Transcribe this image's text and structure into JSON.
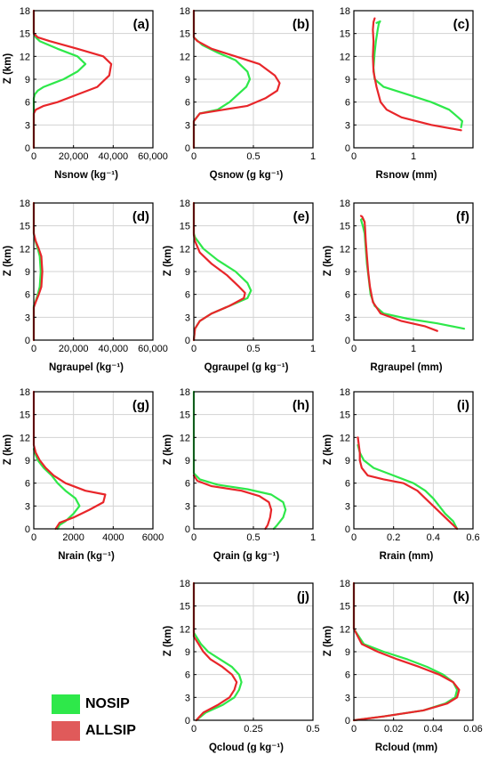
{
  "colors": {
    "nosip": "#2ee84a",
    "allsip": "#e8262a",
    "grid": "#d3d3d3",
    "axis": "#000000"
  },
  "legend": {
    "items": [
      {
        "label": "NOSIP",
        "color": "#2ee84a"
      },
      {
        "label": "ALLSIP",
        "color": "#e05a5a"
      }
    ]
  },
  "chart_data": [
    {
      "id": "a",
      "panel_label": "(a)",
      "type": "line",
      "xlabel": "Nsnow (kg⁻¹)",
      "ylabel": "Z (km)",
      "xlim": [
        0,
        60000
      ],
      "xticks": [
        0,
        20000,
        40000,
        60000
      ],
      "xtick_labels": [
        "0",
        "20,000",
        "40,000",
        "60,000"
      ],
      "ylim": [
        0,
        18
      ],
      "yticks": [
        0,
        3,
        6,
        9,
        12,
        15,
        18
      ],
      "ytick_labels": [
        "0",
        "3",
        "6",
        "9",
        "12",
        "15",
        "18"
      ],
      "series": [
        {
          "name": "NOSIP",
          "x": [
            0,
            0,
            500,
            2000,
            5000,
            10000,
            15000,
            22000,
            26000,
            22000,
            12000,
            3000,
            1000,
            0,
            0
          ],
          "y": [
            0,
            6.5,
            7,
            7.5,
            8,
            8.5,
            9,
            10,
            11,
            12,
            13,
            14,
            14.5,
            15,
            18
          ]
        },
        {
          "name": "ALLSIP",
          "x": [
            0,
            0,
            1000,
            5000,
            12000,
            22000,
            32000,
            38000,
            39000,
            35000,
            22000,
            8000,
            2000,
            0,
            0
          ],
          "y": [
            0,
            4.5,
            5,
            5.5,
            6,
            7,
            8,
            9.5,
            11,
            12,
            13,
            14,
            14.5,
            15,
            18
          ]
        }
      ]
    },
    {
      "id": "b",
      "panel_label": "(b)",
      "type": "line",
      "xlabel": "Qsnow (g kg⁻¹)",
      "ylabel": "",
      "xlim": [
        0,
        1
      ],
      "xticks": [
        0,
        0.5,
        1
      ],
      "xtick_labels": [
        "0",
        "0.5",
        "1"
      ],
      "ylim": [
        0,
        18
      ],
      "yticks": [
        0,
        3,
        6,
        9,
        12,
        15,
        18
      ],
      "ytick_labels": [
        "0",
        "3",
        "6",
        "9",
        "12",
        "15",
        "18"
      ],
      "series": [
        {
          "name": "NOSIP",
          "x": [
            0,
            0,
            0.05,
            0.2,
            0.3,
            0.37,
            0.44,
            0.47,
            0.45,
            0.35,
            0.2,
            0.07,
            0,
            0
          ],
          "y": [
            0,
            3.5,
            4.5,
            5,
            6,
            7,
            8,
            9,
            10,
            11.5,
            12.5,
            13.5,
            14.5,
            18
          ]
        },
        {
          "name": "ALLSIP",
          "x": [
            0,
            0,
            0.05,
            0.25,
            0.45,
            0.6,
            0.7,
            0.72,
            0.68,
            0.55,
            0.35,
            0.15,
            0.03,
            0,
            0
          ],
          "y": [
            0,
            3.5,
            4.5,
            5,
            5.5,
            6.5,
            7.5,
            8.5,
            9.5,
            11,
            12,
            13,
            14,
            14.5,
            18
          ]
        }
      ]
    },
    {
      "id": "c",
      "panel_label": "(c)",
      "type": "line",
      "xlabel": "Rsnow (mm)",
      "ylabel": "",
      "xlim": [
        0,
        2
      ],
      "xticks": [
        0,
        1,
        2
      ],
      "xtick_labels": [
        "0",
        "1",
        ""
      ],
      "ylim": [
        0,
        18
      ],
      "yticks": [
        0,
        3,
        6,
        9,
        12,
        15,
        18
      ],
      "ytick_labels": [
        "0",
        "3",
        "6",
        "9",
        "12",
        "15",
        "18"
      ],
      "series": [
        {
          "name": "NOSIP",
          "x": [
            1.8,
            1.82,
            1.75,
            1.6,
            1.3,
            0.9,
            0.5,
            0.35,
            0.33,
            0.35,
            0.37,
            0.4,
            0.42,
            0.44,
            0.38
          ],
          "y": [
            2.7,
            3.5,
            4,
            5,
            6,
            7,
            8,
            9,
            10.5,
            12.5,
            14,
            15.5,
            16.3,
            16.6,
            16.4
          ]
        },
        {
          "name": "ALLSIP",
          "x": [
            1.8,
            1.3,
            0.8,
            0.55,
            0.45,
            0.38,
            0.33,
            0.32,
            0.33,
            0.32,
            0.33,
            0.35
          ],
          "y": [
            2.3,
            3,
            4,
            5,
            6,
            8,
            10,
            12,
            14,
            15.5,
            16.5,
            17
          ]
        }
      ]
    },
    {
      "id": "d",
      "panel_label": "(d)",
      "type": "line",
      "xlabel": "Ngraupel (kg⁻¹)",
      "ylabel": "Z (km)",
      "xlim": [
        0,
        60000
      ],
      "xticks": [
        0,
        20000,
        40000,
        60000
      ],
      "xtick_labels": [
        "0",
        "20,000",
        "40,000",
        "60,000"
      ],
      "ylim": [
        0,
        18
      ],
      "yticks": [
        0,
        3,
        6,
        9,
        12,
        15,
        18
      ],
      "ytick_labels": [
        "0",
        "3",
        "6",
        "9",
        "12",
        "15",
        "18"
      ],
      "series": [
        {
          "name": "NOSIP",
          "x": [
            0,
            0,
            800,
            2000,
            3000,
            3500,
            3000,
            2000,
            800,
            0,
            0
          ],
          "y": [
            0,
            4.5,
            5,
            6,
            7,
            9,
            11,
            12,
            13,
            14,
            18
          ]
        },
        {
          "name": "ALLSIP",
          "x": [
            0,
            0,
            1000,
            2500,
            3800,
            4300,
            3800,
            2500,
            1000,
            0,
            0
          ],
          "y": [
            0,
            4.3,
            5,
            6,
            7,
            9,
            11,
            12,
            13,
            14,
            18
          ]
        }
      ]
    },
    {
      "id": "e",
      "panel_label": "(e)",
      "type": "line",
      "xlabel": "Qgraupel (g kg⁻¹)",
      "ylabel": "Z (km)",
      "xlim": [
        0,
        1
      ],
      "xticks": [
        0,
        0.5,
        1
      ],
      "xtick_labels": [
        "0",
        "0.5",
        "1"
      ],
      "ylim": [
        0,
        18
      ],
      "yticks": [
        0,
        3,
        6,
        9,
        12,
        15,
        18
      ],
      "ytick_labels": [
        "0",
        "3",
        "6",
        "9",
        "12",
        "15",
        "18"
      ],
      "series": [
        {
          "name": "NOSIP",
          "x": [
            0,
            0.01,
            0.05,
            0.15,
            0.3,
            0.45,
            0.48,
            0.45,
            0.35,
            0.2,
            0.08,
            0.01,
            0,
            0
          ],
          "y": [
            0,
            1.5,
            2.5,
            3.5,
            4.5,
            5.5,
            6.5,
            7.5,
            9,
            10.5,
            12,
            13.5,
            14,
            18
          ]
        },
        {
          "name": "ALLSIP",
          "x": [
            0,
            0.01,
            0.05,
            0.15,
            0.3,
            0.42,
            0.43,
            0.38,
            0.28,
            0.15,
            0.05,
            0.01,
            0,
            0
          ],
          "y": [
            0,
            1.5,
            2.5,
            3.5,
            4.5,
            5.5,
            6.2,
            7,
            8.5,
            10,
            11.5,
            13,
            13.8,
            18
          ]
        }
      ]
    },
    {
      "id": "f",
      "panel_label": "(f)",
      "type": "line",
      "xlabel": "Rgraupel (mm)",
      "ylabel": "Z (km)",
      "xlim": [
        0,
        2
      ],
      "xticks": [
        0,
        1,
        2
      ],
      "xtick_labels": [
        "0",
        "1",
        ""
      ],
      "ylim": [
        0,
        18
      ],
      "yticks": [
        0,
        3,
        6,
        9,
        12,
        15,
        18
      ],
      "ytick_labels": [
        "0",
        "3",
        "6",
        "9",
        "12",
        "15",
        "18"
      ],
      "series": [
        {
          "name": "NOSIP",
          "x": [
            1.85,
            1.4,
            0.9,
            0.5,
            0.35,
            0.28,
            0.25,
            0.22,
            0.2,
            0.18,
            0.15,
            0.12,
            0.15,
            0.18
          ],
          "y": [
            1.5,
            2.2,
            2.8,
            3.5,
            4.5,
            6,
            8,
            10,
            12,
            14,
            15,
            15.8,
            16,
            15.5
          ]
        },
        {
          "name": "ALLSIP",
          "x": [
            1.4,
            1.2,
            0.8,
            0.45,
            0.32,
            0.27,
            0.24,
            0.22,
            0.2,
            0.19,
            0.18,
            0.14,
            0.12
          ],
          "y": [
            1.2,
            1.8,
            2.5,
            3.5,
            5,
            7,
            9,
            11,
            13,
            14.5,
            15.5,
            16.2,
            16.3
          ]
        }
      ]
    },
    {
      "id": "g",
      "panel_label": "(g)",
      "type": "line",
      "xlabel": "Nrain (kg⁻¹)",
      "ylabel": "Z (km)",
      "xlim": [
        0,
        6000
      ],
      "xticks": [
        0,
        2000,
        4000,
        6000
      ],
      "xtick_labels": [
        "0",
        "2000",
        "4000",
        "6000"
      ],
      "ylim": [
        0,
        18
      ],
      "yticks": [
        0,
        3,
        6,
        9,
        12,
        15,
        18
      ],
      "ytick_labels": [
        "0",
        "3",
        "6",
        "9",
        "12",
        "15",
        "18"
      ],
      "series": [
        {
          "name": "NOSIP",
          "x": [
            1200,
            1300,
            1600,
            2000,
            2300,
            2100,
            1600,
            1200,
            900,
            500,
            200,
            50,
            0
          ],
          "y": [
            0,
            0.5,
            1,
            2,
            3,
            4,
            5,
            6,
            7,
            8,
            9,
            10,
            10.5
          ]
        },
        {
          "name": "ALLSIP",
          "x": [
            1100,
            1300,
            2000,
            2800,
            3500,
            3600,
            2600,
            1600,
            1000,
            600,
            300,
            100,
            0,
            0
          ],
          "y": [
            0,
            0.8,
            1.5,
            2.5,
            3.5,
            4.5,
            5,
            6,
            7,
            8,
            9,
            10,
            11,
            18
          ]
        }
      ]
    },
    {
      "id": "h",
      "panel_label": "(h)",
      "type": "line",
      "xlabel": "Qrain (g kg⁻¹)",
      "ylabel": "Z (km)",
      "xlim": [
        0,
        1
      ],
      "xticks": [
        0,
        0.5,
        1
      ],
      "xtick_labels": [
        "0",
        "0.5",
        "1"
      ],
      "ylim": [
        0,
        18
      ],
      "yticks": [
        0,
        3,
        6,
        9,
        12,
        15,
        18
      ],
      "ytick_labels": [
        "0",
        "3",
        "6",
        "9",
        "12",
        "15",
        "18"
      ],
      "series": [
        {
          "name": "NOSIP",
          "x": [
            0.67,
            0.7,
            0.75,
            0.77,
            0.75,
            0.65,
            0.45,
            0.2,
            0.05,
            0,
            0
          ],
          "y": [
            0,
            0.5,
            1.5,
            2.5,
            3.5,
            4.5,
            5.2,
            5.8,
            6.5,
            7.3,
            18
          ]
        },
        {
          "name": "ALLSIP",
          "x": [
            0.6,
            0.62,
            0.64,
            0.65,
            0.63,
            0.55,
            0.4,
            0.15,
            0.03,
            0
          ],
          "y": [
            0,
            0.5,
            1.5,
            2.5,
            3.5,
            4.3,
            5,
            5.6,
            6.3,
            7
          ]
        }
      ]
    },
    {
      "id": "i",
      "panel_label": "(i)",
      "type": "line",
      "xlabel": "Rrain (mm)",
      "ylabel": "Z (km)",
      "xlim": [
        0,
        0.6
      ],
      "xticks": [
        0,
        0.2,
        0.4,
        0.6
      ],
      "xtick_labels": [
        "0",
        "0.2",
        "0.4",
        "0.6"
      ],
      "ylim": [
        0,
        18
      ],
      "yticks": [
        0,
        3,
        6,
        9,
        12,
        15,
        18
      ],
      "ytick_labels": [
        "0",
        "3",
        "6",
        "9",
        "12",
        "15",
        "18"
      ],
      "series": [
        {
          "name": "NOSIP",
          "x": [
            0.52,
            0.5,
            0.46,
            0.43,
            0.4,
            0.36,
            0.3,
            0.2,
            0.1,
            0.05,
            0.03,
            0.02
          ],
          "y": [
            0,
            1,
            2,
            3,
            4,
            5,
            6,
            7,
            8,
            9,
            10,
            11
          ]
        },
        {
          "name": "ALLSIP",
          "x": [
            0.52,
            0.48,
            0.44,
            0.4,
            0.36,
            0.32,
            0.25,
            0.15,
            0.07,
            0.04,
            0.03,
            0.03,
            0.02
          ],
          "y": [
            0,
            1,
            2,
            3,
            4,
            5,
            6,
            6.5,
            7,
            8,
            9,
            10,
            12
          ]
        }
      ]
    },
    {
      "id": "j",
      "panel_label": "(j)",
      "type": "line",
      "xlabel": "Qcloud (g kg⁻¹)",
      "ylabel": "Z (km)",
      "xlim": [
        0,
        0.5
      ],
      "xticks": [
        0,
        0.25,
        0.5
      ],
      "xtick_labels": [
        "0",
        "0.25",
        "0.5"
      ],
      "ylim": [
        0,
        18
      ],
      "yticks": [
        0,
        3,
        6,
        9,
        12,
        15,
        18
      ],
      "ytick_labels": [
        "0",
        "3",
        "6",
        "9",
        "12",
        "15",
        "18"
      ],
      "series": [
        {
          "name": "NOSIP",
          "x": [
            0.01,
            0.05,
            0.12,
            0.17,
            0.19,
            0.2,
            0.19,
            0.16,
            0.11,
            0.06,
            0.03,
            0,
            0
          ],
          "y": [
            0,
            1,
            2,
            3,
            4,
            5,
            6,
            7,
            8,
            9,
            10,
            11.5,
            18
          ]
        },
        {
          "name": "ALLSIP",
          "x": [
            0.01,
            0.04,
            0.1,
            0.15,
            0.17,
            0.18,
            0.16,
            0.12,
            0.07,
            0.04,
            0.02,
            0,
            0
          ],
          "y": [
            0,
            1,
            2,
            3,
            4,
            5,
            6,
            7,
            8,
            9,
            10,
            11,
            18
          ]
        }
      ]
    },
    {
      "id": "k",
      "panel_label": "(k)",
      "type": "line",
      "xlabel": "Rcloud (mm)",
      "ylabel": "Z (km)",
      "xlim": [
        0,
        0.06
      ],
      "xticks": [
        0,
        0.02,
        0.04,
        0.06
      ],
      "xtick_labels": [
        "0",
        "0.02",
        "0.04",
        "0.06"
      ],
      "ylim": [
        0,
        18
      ],
      "yticks": [
        0,
        3,
        6,
        9,
        12,
        15,
        18
      ],
      "ytick_labels": [
        "0",
        "3",
        "6",
        "9",
        "12",
        "15",
        "18"
      ],
      "series": [
        {
          "name": "NOSIP",
          "x": [
            0,
            0.015,
            0.035,
            0.046,
            0.051,
            0.052,
            0.05,
            0.045,
            0.037,
            0.027,
            0.015,
            0.005,
            0,
            0
          ],
          "y": [
            0,
            0.5,
            1.3,
            2.2,
            3,
            4,
            5,
            6,
            7,
            8,
            9,
            10,
            12,
            18
          ]
        },
        {
          "name": "ALLSIP",
          "x": [
            0,
            0.015,
            0.035,
            0.047,
            0.052,
            0.053,
            0.05,
            0.043,
            0.033,
            0.022,
            0.012,
            0.004,
            0,
            0
          ],
          "y": [
            0,
            0.5,
            1.3,
            2.2,
            3,
            4,
            5,
            6,
            7,
            8,
            9,
            10,
            12,
            18
          ]
        }
      ]
    }
  ]
}
